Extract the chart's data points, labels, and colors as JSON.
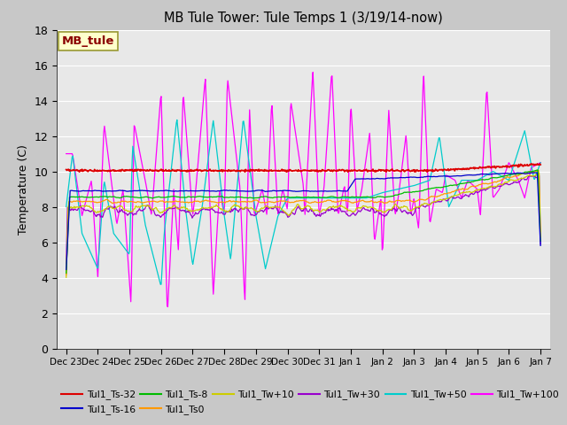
{
  "title": "MB Tule Tower: Tule Temps 1 (3/19/14-now)",
  "ylabel": "Temperature (C)",
  "xlim_days": [
    -0.3,
    15.3
  ],
  "ylim": [
    0,
    18
  ],
  "yticks": [
    0,
    2,
    4,
    6,
    8,
    10,
    12,
    14,
    16,
    18
  ],
  "xtick_labels": [
    "Dec 23",
    "Dec 24",
    "Dec 25",
    "Dec 26",
    "Dec 27",
    "Dec 28",
    "Dec 29",
    "Dec 30",
    "Dec 31",
    "Jan 1",
    "Jan 2",
    "Jan 3",
    "Jan 4",
    "Jan 5",
    "Jan 6",
    "Jan 7"
  ],
  "xtick_positions": [
    0,
    1,
    2,
    3,
    4,
    5,
    6,
    7,
    8,
    9,
    10,
    11,
    12,
    13,
    14,
    15
  ],
  "fig_bg": "#c8c8c8",
  "plot_bg": "#e8e8e8",
  "grid_color": "#ffffff",
  "legend_label": "MB_tule",
  "legend_box_facecolor": "#ffffcc",
  "legend_box_edgecolor": "#999933",
  "legend_text_color": "#8b0000",
  "bottom_legend": [
    {
      "label": "Tul1_Ts-32",
      "color": "#dd0000"
    },
    {
      "label": "Tul1_Ts-16",
      "color": "#0000cc"
    },
    {
      "label": "Tul1_Ts-8",
      "color": "#00bb00"
    },
    {
      "label": "Tul1_Ts0",
      "color": "#ff9900"
    },
    {
      "label": "Tul1_Tw+10",
      "color": "#cccc00"
    },
    {
      "label": "Tul1_Tw+30",
      "color": "#9900cc"
    },
    {
      "label": "Tul1_Tw+50",
      "color": "#00cccc"
    },
    {
      "label": "Tul1_Tw+100",
      "color": "#ff00ff"
    }
  ]
}
